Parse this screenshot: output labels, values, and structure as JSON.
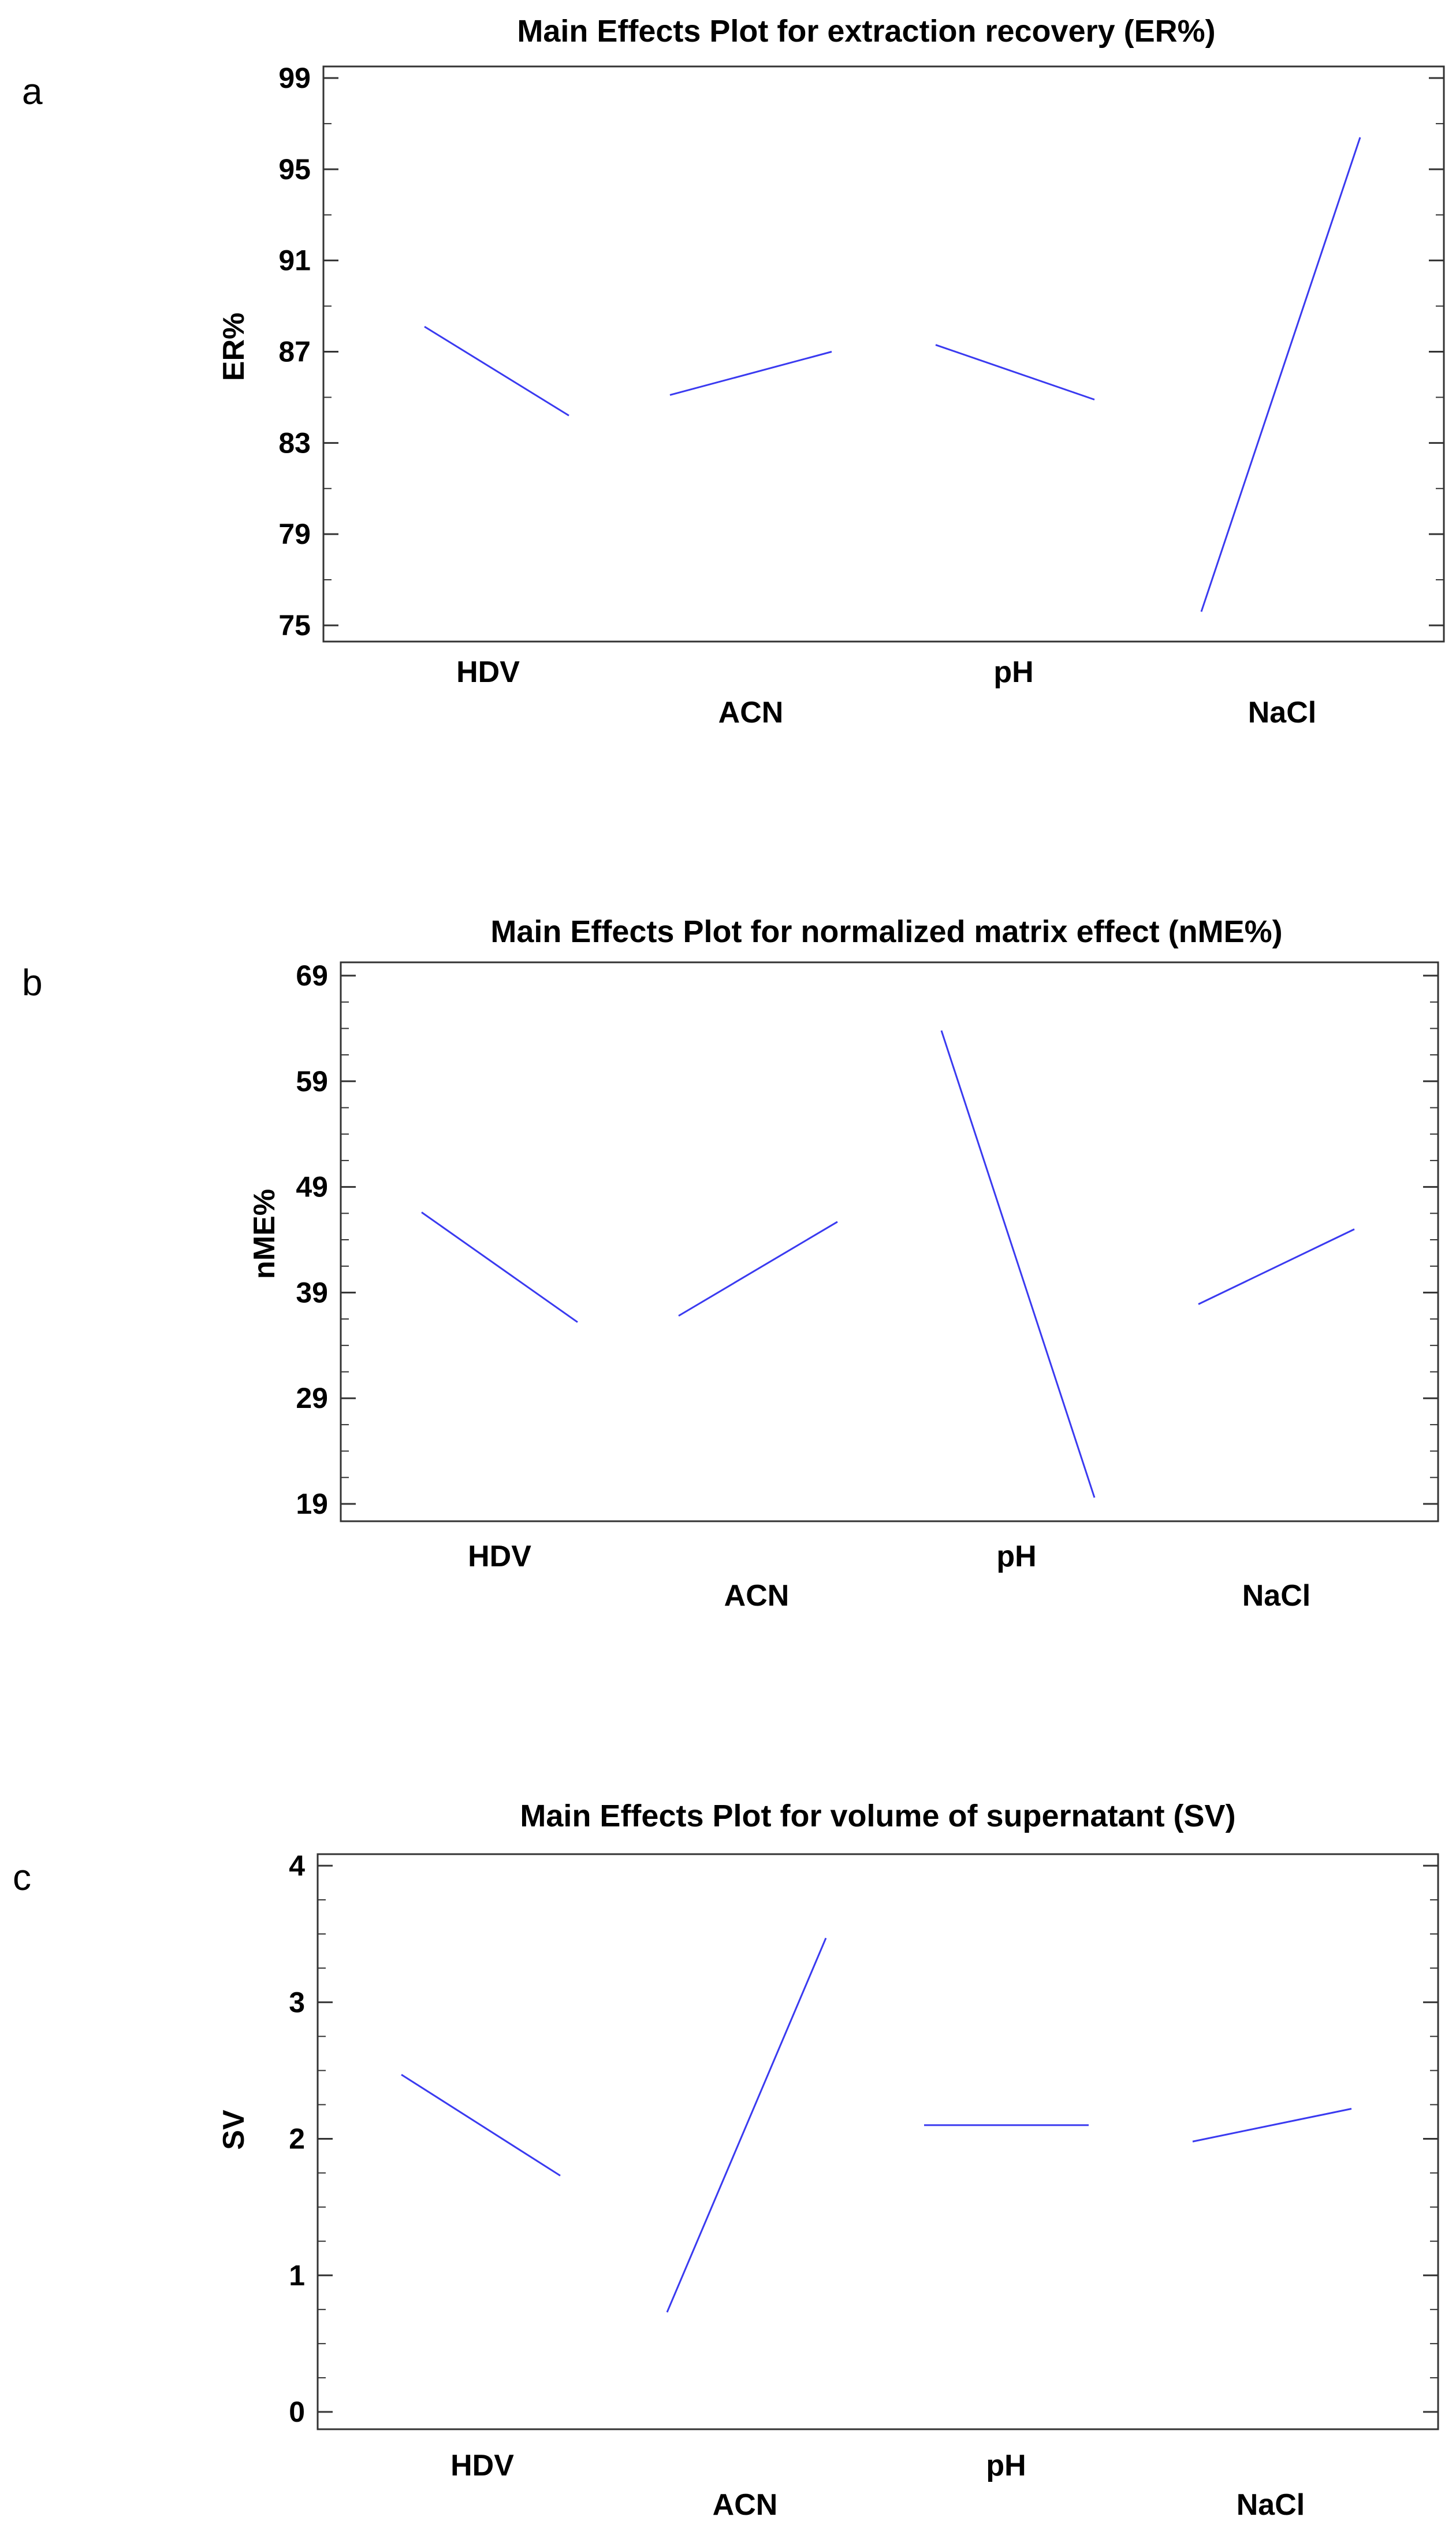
{
  "figure": {
    "panels": [
      {
        "letter": "a",
        "chart_data": {
          "type": "line",
          "title": "Main Effects Plot for extraction recovery (ER%)",
          "ylabel": "ER%",
          "xlabel": "",
          "ylim": [
            75,
            99
          ],
          "yticks": [
            75,
            79,
            83,
            87,
            91,
            95,
            99
          ],
          "factors": [
            "HDV",
            "ACN",
            "pH",
            "NaCl"
          ],
          "series": [
            {
              "factor": "HDV",
              "values": [
                88.1,
                84.2
              ]
            },
            {
              "factor": "ACN",
              "values": [
                85.1,
                87.0
              ]
            },
            {
              "factor": "pH",
              "values": [
                87.3,
                84.9
              ]
            },
            {
              "factor": "NaCl",
              "values": [
                75.6,
                96.4
              ]
            }
          ],
          "grid": false,
          "line_color": "#3a3af0"
        }
      },
      {
        "letter": "b",
        "chart_data": {
          "type": "line",
          "title": "Main Effects Plot for normalized matrix effect (nME%)",
          "ylabel": "nME%",
          "xlabel": "",
          "ylim": [
            19,
            69
          ],
          "yticks": [
            19,
            29,
            39,
            49,
            59,
            69
          ],
          "factors": [
            "HDV",
            "ACN",
            "pH",
            "NaCl"
          ],
          "series": [
            {
              "factor": "HDV",
              "values": [
                46.6,
                36.2
              ]
            },
            {
              "factor": "ACN",
              "values": [
                36.8,
                45.7
              ]
            },
            {
              "factor": "pH",
              "values": [
                63.8,
                19.6
              ]
            },
            {
              "factor": "NaCl",
              "values": [
                37.9,
                45.0
              ]
            }
          ],
          "grid": false,
          "line_color": "#3a3af0"
        }
      },
      {
        "letter": "c",
        "chart_data": {
          "type": "line",
          "title": "Main Effects Plot for volume of supernatant (SV)",
          "ylabel": "SV",
          "xlabel": "",
          "ylim": [
            0,
            4
          ],
          "yticks": [
            0,
            1,
            2,
            3,
            4
          ],
          "factors": [
            "HDV",
            "ACN",
            "pH",
            "NaCl"
          ],
          "series": [
            {
              "factor": "HDV",
              "values": [
                2.47,
                1.73
              ]
            },
            {
              "factor": "ACN",
              "values": [
                0.73,
                3.47
              ]
            },
            {
              "factor": "pH",
              "values": [
                2.1,
                2.1
              ]
            },
            {
              "factor": "NaCl",
              "values": [
                1.98,
                2.22
              ]
            }
          ],
          "grid": false,
          "line_color": "#3a3af0"
        }
      }
    ]
  }
}
